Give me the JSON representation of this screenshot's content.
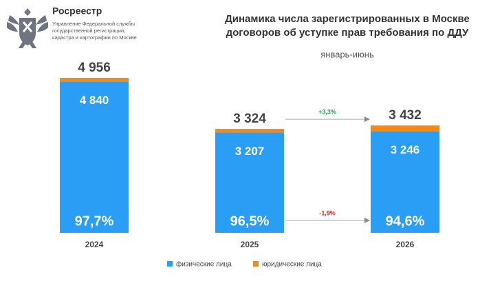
{
  "header": {
    "brand": "Росреестр",
    "org": [
      "Управление Федеральной службы",
      "государственной регистрации,",
      "кадастра и картографии по Москве"
    ]
  },
  "chart_data": {
    "type": "stacked_bar",
    "title": [
      "Динамика числа зарегистрированных в Москве",
      "договоров об уступке прав требования по ДДУ"
    ],
    "subtitle": "январь-июнь",
    "categories": [
      "2024",
      "2025",
      "2026"
    ],
    "series": [
      {
        "name": "физические лица",
        "color": "#2a9df4",
        "values": [
          4840,
          3207,
          3246
        ],
        "value_labels": [
          "4 840",
          "3 207",
          "3 246"
        ]
      },
      {
        "name": "юридические лица",
        "color": "#f28a1a",
        "values": [
          116,
          117,
          186
        ]
      }
    ],
    "totals": {
      "values": [
        4956,
        3324,
        3432
      ],
      "value_labels": [
        "4 956",
        "3 324",
        "3 432"
      ]
    },
    "shares": {
      "values": [
        97.7,
        96.5,
        94.6
      ],
      "value_labels": [
        "97,7%",
        "96,5%",
        "94,6%"
      ]
    },
    "annotations": [
      {
        "label": "+3,3%",
        "value": 3.3,
        "color": "#1f9d4a",
        "row": "totals"
      },
      {
        "label": "-1,9%",
        "value": -1.9,
        "color": "#c62828",
        "row": "shares"
      }
    ]
  }
}
